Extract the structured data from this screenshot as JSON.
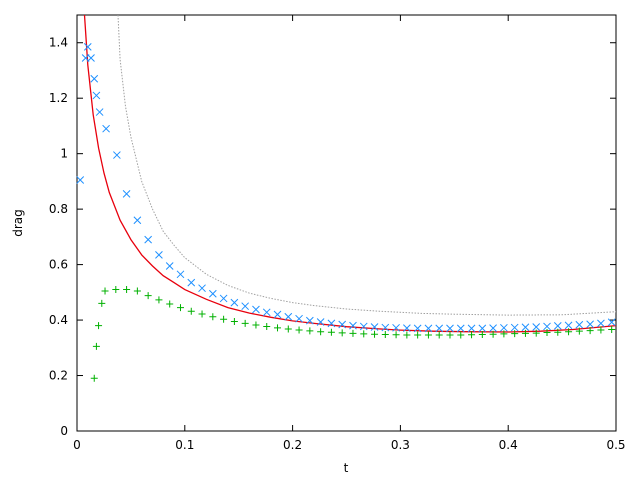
{
  "chart_data": {
    "type": "scatter",
    "title": "",
    "xlabel": "t",
    "ylabel": "drag",
    "xlim": [
      0,
      0.5
    ],
    "ylim": [
      0,
      1.5
    ],
    "x_ticks": [
      0,
      0.1,
      0.2,
      0.3,
      0.4,
      0.5
    ],
    "x_tick_labels": [
      "0",
      "0.1",
      "0.2",
      "0.3",
      "0.4",
      "0.5"
    ],
    "y_ticks": [
      0,
      0.2,
      0.4,
      0.6,
      0.8,
      1.0,
      1.2,
      1.4
    ],
    "y_tick_labels": [
      "0",
      "0.2",
      "0.4",
      "0.6",
      "0.8",
      "1",
      "1.2",
      "1.4"
    ],
    "grid": false,
    "legend": false,
    "series": [
      {
        "style": "line",
        "color": "#e8000d",
        "x": [
          0.007,
          0.01,
          0.015,
          0.02,
          0.025,
          0.03,
          0.04,
          0.05,
          0.06,
          0.07,
          0.08,
          0.09,
          0.1,
          0.12,
          0.14,
          0.16,
          0.18,
          0.2,
          0.22,
          0.25,
          0.28,
          0.3,
          0.33,
          0.36,
          0.4,
          0.43,
          0.46,
          0.5
        ],
        "y": [
          1.5,
          1.32,
          1.14,
          1.02,
          0.93,
          0.86,
          0.76,
          0.69,
          0.635,
          0.595,
          0.56,
          0.535,
          0.51,
          0.475,
          0.445,
          0.425,
          0.41,
          0.397,
          0.388,
          0.376,
          0.368,
          0.364,
          0.36,
          0.358,
          0.357,
          0.36,
          0.366,
          0.38
        ]
      },
      {
        "style": "dotted-line",
        "color": "#a0a0a0",
        "x": [
          0.038,
          0.04,
          0.045,
          0.05,
          0.06,
          0.07,
          0.08,
          0.09,
          0.1,
          0.12,
          0.14,
          0.16,
          0.18,
          0.2,
          0.22,
          0.25,
          0.28,
          0.3,
          0.32,
          0.35,
          0.4,
          0.45,
          0.5
        ],
        "y": [
          1.5,
          1.34,
          1.17,
          1.06,
          0.9,
          0.8,
          0.72,
          0.67,
          0.625,
          0.565,
          0.525,
          0.497,
          0.478,
          0.463,
          0.452,
          0.44,
          0.432,
          0.428,
          0.424,
          0.421,
          0.418,
          0.419,
          0.43
        ]
      },
      {
        "style": "x-markers",
        "color": "#1e90ff",
        "x": [
          0.003,
          0.008,
          0.01,
          0.013,
          0.016,
          0.018,
          0.021,
          0.027,
          0.037,
          0.046,
          0.056,
          0.066,
          0.076,
          0.086,
          0.096,
          0.106,
          0.116,
          0.126,
          0.136,
          0.146,
          0.156,
          0.166,
          0.176,
          0.186,
          0.196,
          0.206,
          0.216,
          0.226,
          0.236,
          0.246,
          0.256,
          0.266,
          0.276,
          0.286,
          0.296,
          0.306,
          0.316,
          0.326,
          0.336,
          0.346,
          0.356,
          0.366,
          0.376,
          0.386,
          0.396,
          0.406,
          0.416,
          0.426,
          0.436,
          0.446,
          0.456,
          0.466,
          0.476,
          0.486,
          0.496
        ],
        "y": [
          0.905,
          1.345,
          1.385,
          1.345,
          1.27,
          1.21,
          1.15,
          1.09,
          0.995,
          0.855,
          0.76,
          0.69,
          0.635,
          0.595,
          0.565,
          0.535,
          0.515,
          0.495,
          0.478,
          0.463,
          0.45,
          0.438,
          0.428,
          0.42,
          0.412,
          0.405,
          0.398,
          0.393,
          0.388,
          0.384,
          0.38,
          0.377,
          0.375,
          0.373,
          0.372,
          0.371,
          0.37,
          0.37,
          0.37,
          0.37,
          0.37,
          0.37,
          0.37,
          0.371,
          0.372,
          0.373,
          0.374,
          0.375,
          0.377,
          0.379,
          0.381,
          0.383,
          0.385,
          0.388,
          0.392
        ]
      },
      {
        "style": "plus-markers",
        "color": "#00b000",
        "x": [
          0.016,
          0.018,
          0.02,
          0.023,
          0.026,
          0.036,
          0.046,
          0.056,
          0.066,
          0.076,
          0.086,
          0.096,
          0.106,
          0.116,
          0.126,
          0.136,
          0.146,
          0.156,
          0.166,
          0.176,
          0.186,
          0.196,
          0.206,
          0.216,
          0.226,
          0.236,
          0.246,
          0.256,
          0.266,
          0.276,
          0.286,
          0.296,
          0.306,
          0.316,
          0.326,
          0.336,
          0.346,
          0.356,
          0.366,
          0.376,
          0.386,
          0.396,
          0.406,
          0.416,
          0.426,
          0.436,
          0.446,
          0.456,
          0.466,
          0.476,
          0.486,
          0.496
        ],
        "y": [
          0.19,
          0.305,
          0.38,
          0.46,
          0.505,
          0.51,
          0.51,
          0.505,
          0.488,
          0.473,
          0.458,
          0.445,
          0.432,
          0.422,
          0.412,
          0.403,
          0.395,
          0.388,
          0.382,
          0.377,
          0.372,
          0.368,
          0.364,
          0.361,
          0.358,
          0.356,
          0.354,
          0.352,
          0.35,
          0.349,
          0.348,
          0.347,
          0.346,
          0.346,
          0.346,
          0.346,
          0.346,
          0.346,
          0.347,
          0.348,
          0.349,
          0.35,
          0.351,
          0.352,
          0.353,
          0.355,
          0.356,
          0.358,
          0.36,
          0.362,
          0.364,
          0.366
        ]
      }
    ]
  }
}
